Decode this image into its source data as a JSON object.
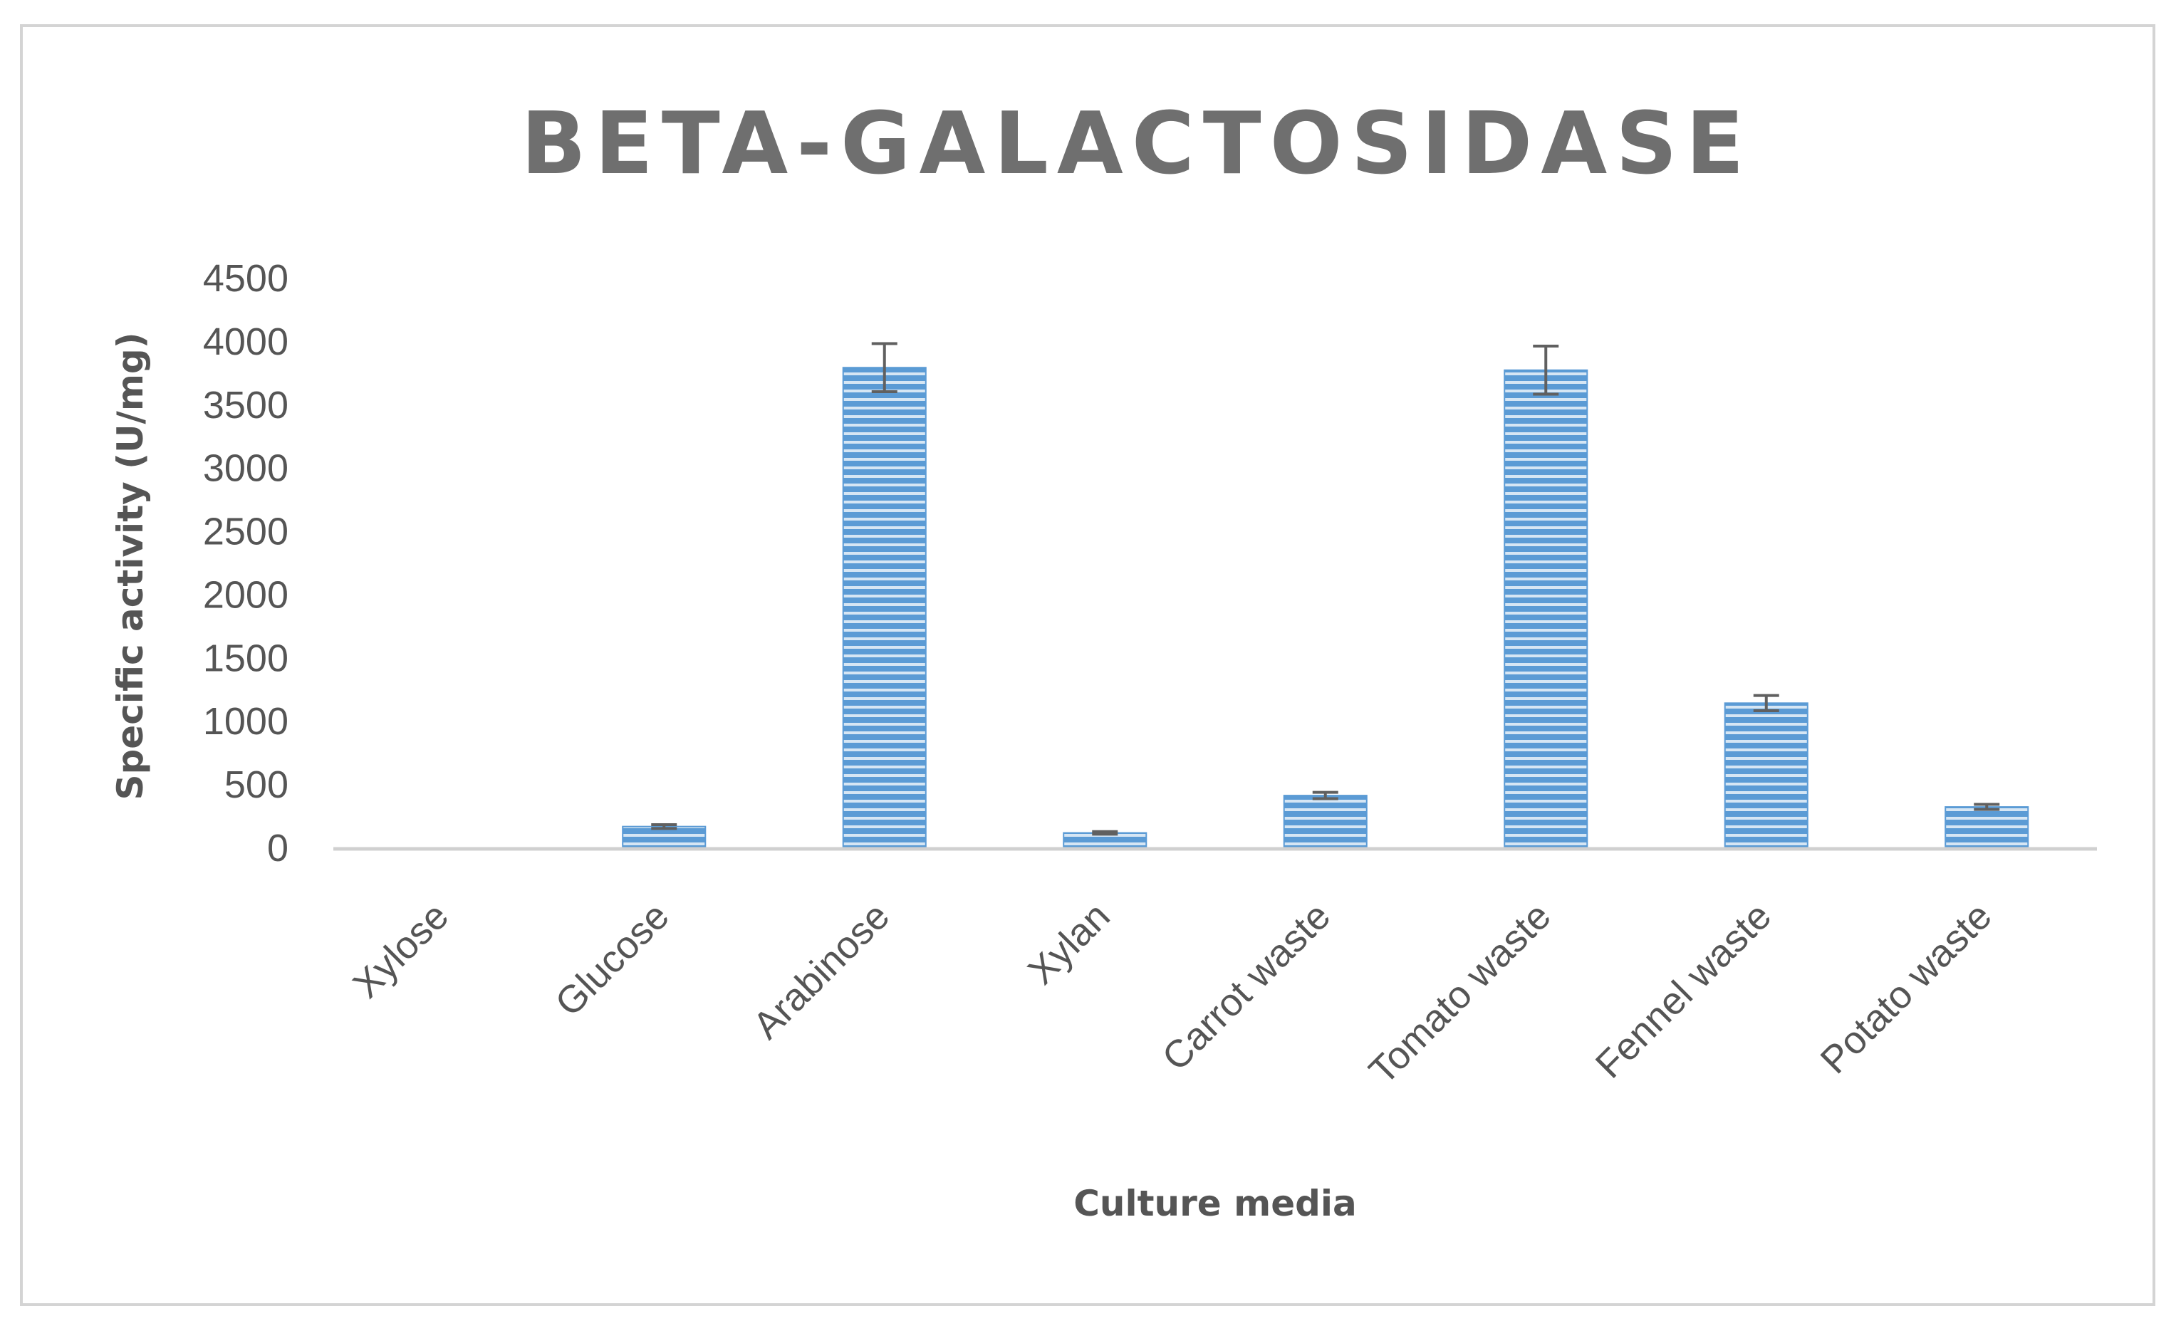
{
  "chart_data": {
    "type": "bar",
    "title": "BETA-GALACTOSIDASE",
    "xlabel": "Culture media",
    "ylabel": "Specific activity (U/mg)",
    "categories": [
      "Xylose",
      "Glucose",
      "Arabinose",
      "Xylan",
      "Carrot waste",
      "Tomato waste",
      "Fennel waste",
      "Potato waste"
    ],
    "values": [
      0,
      165,
      3790,
      115,
      410,
      3770,
      1140,
      320
    ],
    "error": [
      0,
      15,
      190,
      10,
      25,
      190,
      60,
      20
    ],
    "ylim": [
      0,
      4500
    ],
    "yticks": [
      0,
      500,
      1000,
      1500,
      2000,
      2500,
      3000,
      3500,
      4000,
      4500
    ],
    "grid": false,
    "legend": "none",
    "bar_color": "#5b9bd5",
    "bar_stripe_color": "#ffffff"
  }
}
